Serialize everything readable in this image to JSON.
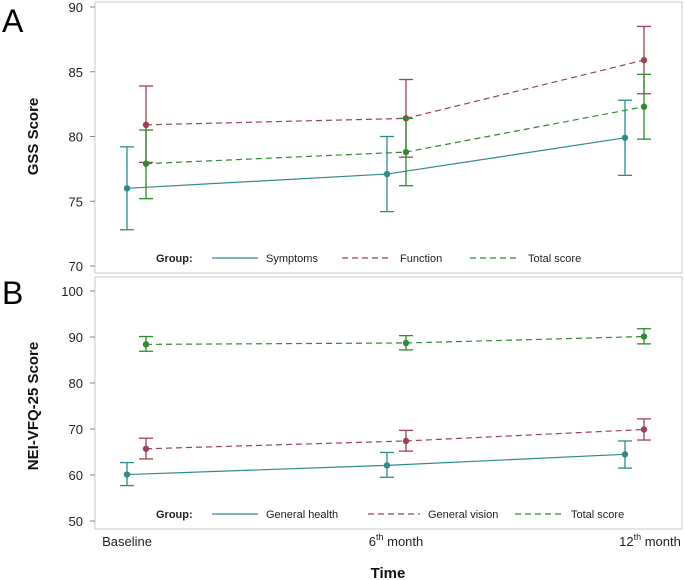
{
  "chart_data": [
    {
      "type": "line",
      "panel_label": "A",
      "ylabel": "GSS Score",
      "ylim": [
        70,
        90
      ],
      "yticks": [
        70,
        75,
        80,
        85,
        90
      ],
      "categories": [
        "Baseline",
        "6th month",
        "12th month"
      ],
      "legend_title": "Group:",
      "series": [
        {
          "name": "Symptoms",
          "color": "#2e8b8b",
          "dash": "solid",
          "values": [
            76.0,
            77.1,
            79.9
          ],
          "lower": [
            72.8,
            74.2,
            77.0
          ],
          "upper": [
            79.2,
            80.0,
            82.8
          ]
        },
        {
          "name": "Function",
          "color": "#a04055",
          "dash": "dashed",
          "values": [
            80.9,
            81.4,
            85.9
          ],
          "lower": [
            78.0,
            78.4,
            83.3
          ],
          "upper": [
            83.9,
            84.4,
            88.5
          ]
        },
        {
          "name": "Total score",
          "color": "#2e8b2e",
          "dash": "dashed",
          "values": [
            77.9,
            78.8,
            82.3
          ],
          "lower": [
            75.2,
            76.2,
            79.8
          ],
          "upper": [
            80.5,
            81.4,
            84.8
          ]
        }
      ]
    },
    {
      "type": "line",
      "panel_label": "B",
      "ylabel": "NEI-VFQ-25 Score",
      "ylim": [
        50,
        100
      ],
      "yticks": [
        50,
        60,
        70,
        80,
        90,
        100
      ],
      "categories": [
        "Baseline",
        "6th month",
        "12th month"
      ],
      "legend_title": "Group:",
      "series": [
        {
          "name": "General health",
          "color": "#2e8b8b",
          "dash": "solid",
          "values": [
            60.1,
            62.1,
            64.5
          ],
          "lower": [
            57.7,
            59.5,
            61.5
          ],
          "upper": [
            62.7,
            64.9,
            67.4
          ]
        },
        {
          "name": "General vision",
          "color": "#a04055",
          "dash": "dashed",
          "values": [
            65.7,
            67.4,
            69.9
          ],
          "lower": [
            63.5,
            65.2,
            67.6
          ],
          "upper": [
            68.0,
            69.7,
            72.2
          ]
        },
        {
          "name": "Total score",
          "color": "#2e8b2e",
          "dash": "dashed",
          "values": [
            88.4,
            88.7,
            90.1
          ],
          "lower": [
            86.9,
            87.2,
            88.5
          ],
          "upper": [
            90.1,
            90.3,
            91.8
          ]
        }
      ]
    }
  ],
  "xaxis": {
    "label": "Time",
    "ticks": [
      {
        "main": "Baseline",
        "sup": "",
        "rest": ""
      },
      {
        "main": "6",
        "sup": "th",
        "rest": " month"
      },
      {
        "main": "12",
        "sup": "th",
        "rest": " month"
      }
    ]
  }
}
